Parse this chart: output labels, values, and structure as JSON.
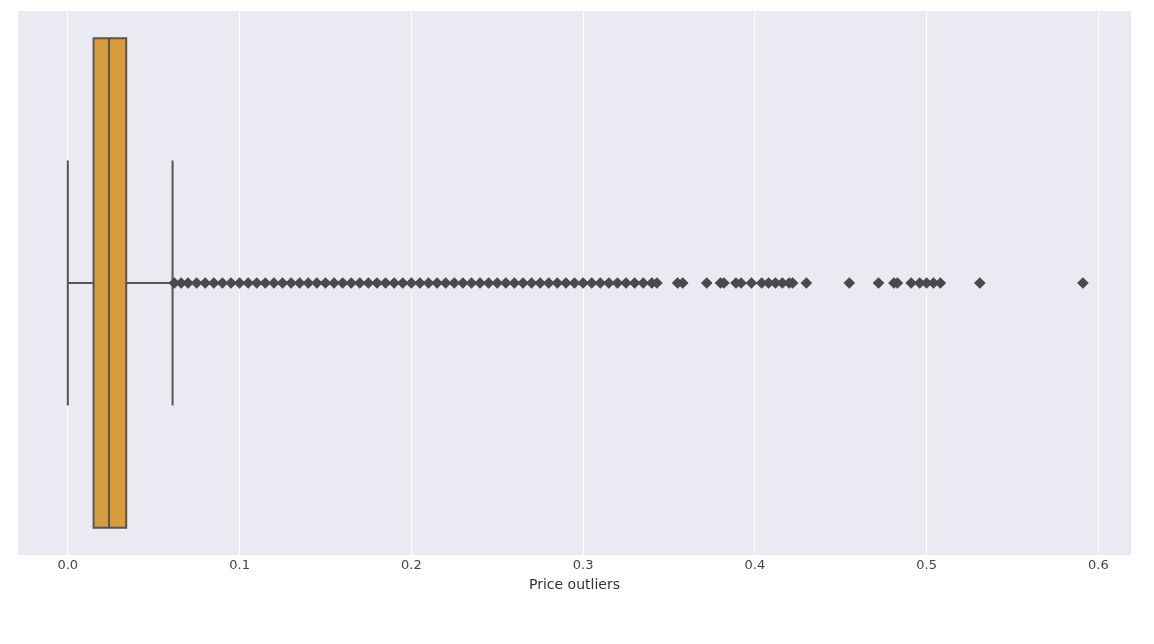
{
  "chart_data": {
    "type": "box",
    "orientation": "horizontal",
    "xlabel": "Price outliers",
    "categories": [
      null
    ],
    "color": "#d89c3c",
    "boxes": [
      {
        "low": 0.0,
        "q1": 0.015,
        "median": 0.024,
        "q3": 0.034,
        "high": 0.061,
        "outliers": [
          0.062,
          0.066,
          0.07,
          0.075,
          0.08,
          0.085,
          0.09,
          0.095,
          0.1,
          0.105,
          0.11,
          0.115,
          0.12,
          0.125,
          0.13,
          0.135,
          0.14,
          0.145,
          0.15,
          0.155,
          0.16,
          0.165,
          0.17,
          0.175,
          0.18,
          0.185,
          0.19,
          0.195,
          0.2,
          0.205,
          0.21,
          0.215,
          0.22,
          0.225,
          0.23,
          0.235,
          0.24,
          0.245,
          0.25,
          0.255,
          0.26,
          0.265,
          0.27,
          0.275,
          0.28,
          0.285,
          0.29,
          0.295,
          0.3,
          0.305,
          0.31,
          0.315,
          0.32,
          0.325,
          0.33,
          0.335,
          0.34,
          0.343,
          0.355,
          0.358,
          0.372,
          0.38,
          0.382,
          0.389,
          0.392,
          0.398,
          0.404,
          0.408,
          0.412,
          0.416,
          0.42,
          0.422,
          0.43,
          0.455,
          0.472,
          0.481,
          0.483,
          0.491,
          0.496,
          0.5,
          0.504,
          0.508,
          0.531,
          0.591
        ]
      }
    ],
    "xlim": [
      -0.029,
      0.619
    ],
    "xticks": [
      {
        "value": 0,
        "label": "0.0"
      },
      0.1,
      0.2,
      0.3,
      0.4,
      0.5,
      0.6
    ],
    "grid": "x",
    "marker": "diamond",
    "tick_labels": "x"
  }
}
